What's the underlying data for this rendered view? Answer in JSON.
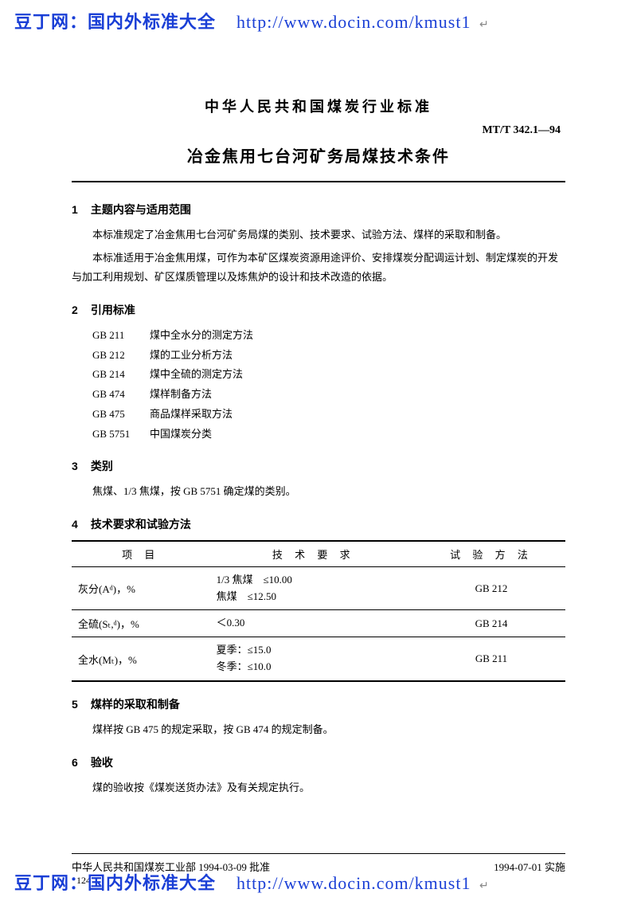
{
  "watermark": {
    "site_label": "豆丁网：国内外标准大全",
    "url": "http://www.docin.com/kmust1",
    "trail": "↵"
  },
  "header": {
    "org": "中华人民共和国煤炭行业标准",
    "code": "MT/T 342.1—94",
    "title": "冶金焦用七台河矿务局煤技术条件"
  },
  "sections": {
    "s1": {
      "num": "1",
      "heading": "主题内容与适用范围",
      "p1": "本标准规定了冶金焦用七台河矿务局煤的类别、技术要求、试验方法、煤样的采取和制备。",
      "p2": "本标准适用于冶金焦用煤，可作为本矿区煤炭资源用途评价、安排煤炭分配调运计划、制定煤炭的开发与加工利用规划、矿区煤质管理以及炼焦炉的设计和技术改造的依据。"
    },
    "s2": {
      "num": "2",
      "heading": "引用标准",
      "refs": [
        {
          "code": "GB 211",
          "name": "煤中全水分的测定方法"
        },
        {
          "code": "GB 212",
          "name": "煤的工业分析方法"
        },
        {
          "code": "GB 214",
          "name": "煤中全硫的测定方法"
        },
        {
          "code": "GB 474",
          "name": "煤样制备方法"
        },
        {
          "code": "GB 475",
          "name": "商品煤样采取方法"
        },
        {
          "code": "GB 5751",
          "name": "中国煤炭分类"
        }
      ]
    },
    "s3": {
      "num": "3",
      "heading": "类别",
      "p": "焦煤、1/3 焦煤，按 GB 5751 确定煤的类别。"
    },
    "s4": {
      "num": "4",
      "heading": "技术要求和试验方法",
      "table": {
        "head": {
          "c1": "项 目",
          "c2": "技 术 要 求",
          "c3": "试 验 方 法"
        },
        "rows": [
          {
            "c1": "灰分(Aᵈ)，%",
            "c2": "1/3 焦煤　≤10.00\n焦煤　≤12.50",
            "c3": "GB 212"
          },
          {
            "c1": "全硫(Sₜ,ᵈ)，%",
            "c2": "＜0.30",
            "c3": "GB 214"
          },
          {
            "c1": "全水(Mₜ)，%",
            "c2": "夏季：≤15.0\n冬季：≤10.0",
            "c3": "GB 211"
          }
        ]
      }
    },
    "s5": {
      "num": "5",
      "heading": "煤样的采取和制备",
      "p": "煤样按 GB 475 的规定采取，按 GB 474 的规定制备。"
    },
    "s6": {
      "num": "6",
      "heading": "验收",
      "p": "煤的验收按《煤炭送货办法》及有关规定执行。"
    }
  },
  "footer": {
    "approved": "中华人民共和国煤炭工业部 1994-03-09 批准",
    "effective": "1994-07-01 实施",
    "page": "124"
  }
}
